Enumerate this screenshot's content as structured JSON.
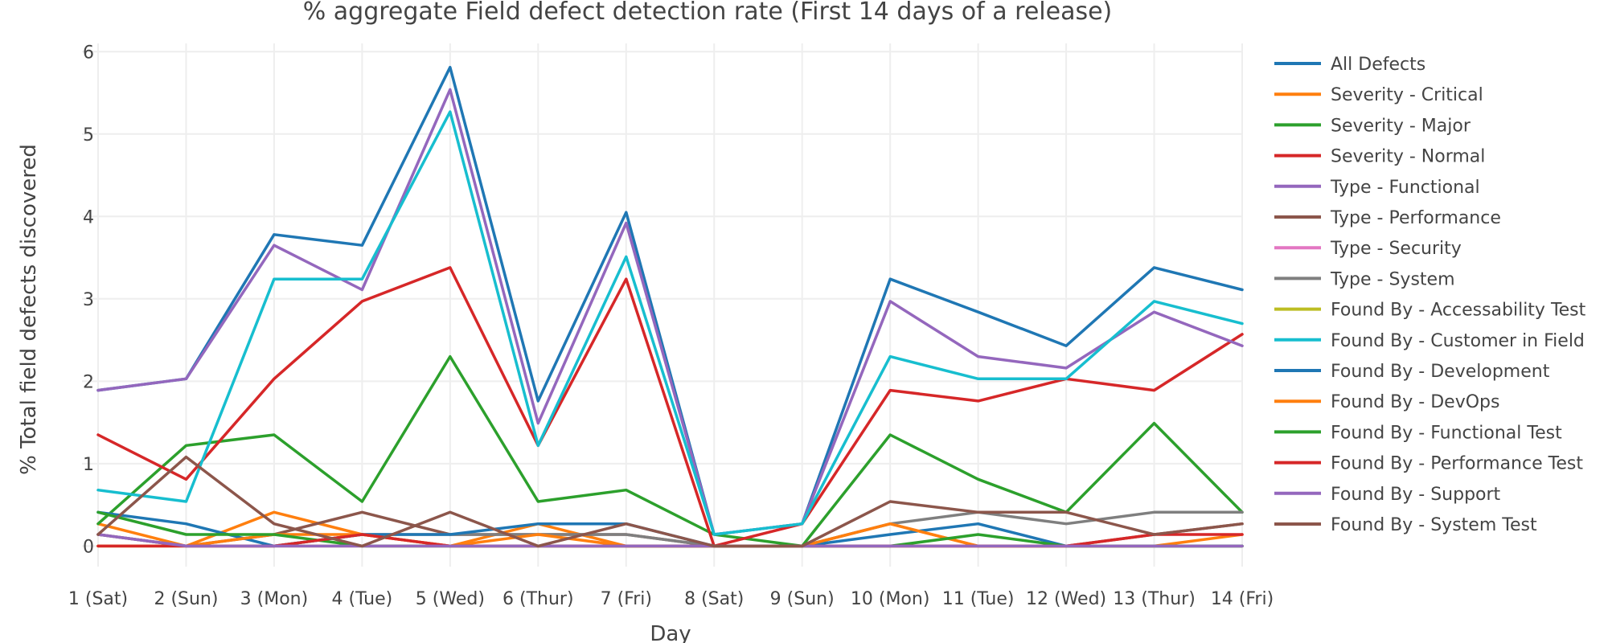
{
  "chart_data": {
    "type": "line",
    "title": "% aggregate Field defect detection rate (First 14 days of a release)",
    "xlabel": "Day",
    "ylabel": "% Total field defects discovered",
    "ylim": [
      -0.25,
      6.1
    ],
    "yticks": [
      0,
      1,
      2,
      3,
      4,
      5,
      6
    ],
    "grid": true,
    "legend_position": "right",
    "categories": [
      "1 (Sat)",
      "2 (Sun)",
      "3 (Mon)",
      "4 (Tue)",
      "5 (Wed)",
      "6 (Thur)",
      "7 (Fri)",
      "8 (Sat)",
      "9 (Sun)",
      "10 (Mon)",
      "11 (Tue)",
      "12 (Wed)",
      "13 (Thur)",
      "14 (Fri)"
    ],
    "series": [
      {
        "name": "All Defects",
        "color": "#1f77b4",
        "values": [
          1.89,
          2.03,
          3.78,
          3.65,
          5.81,
          1.76,
          4.05,
          0.14,
          0.27,
          3.24,
          2.84,
          2.43,
          3.38,
          3.11
        ]
      },
      {
        "name": "Severity - Critical",
        "color": "#ff7f0e",
        "values": [
          0.27,
          0.0,
          0.41,
          0.14,
          0.0,
          0.27,
          0.0,
          0.0,
          0.0,
          0.27,
          0.0,
          0.0,
          0.0,
          0.0
        ]
      },
      {
        "name": "Severity - Major",
        "color": "#2ca02c",
        "values": [
          0.27,
          1.22,
          1.35,
          0.54,
          2.3,
          0.54,
          0.68,
          0.14,
          0.0,
          1.35,
          0.81,
          0.41,
          1.49,
          0.41
        ]
      },
      {
        "name": "Severity - Normal",
        "color": "#d62728",
        "values": [
          1.35,
          0.81,
          2.03,
          2.97,
          3.38,
          1.22,
          3.24,
          0.0,
          0.27,
          1.89,
          1.76,
          2.03,
          1.89,
          2.57
        ]
      },
      {
        "name": "Type - Functional",
        "color": "#9467bd",
        "values": [
          1.89,
          2.03,
          3.65,
          3.11,
          5.54,
          1.49,
          3.92,
          0.14,
          0.27,
          2.97,
          2.3,
          2.16,
          2.84,
          2.43
        ]
      },
      {
        "name": "Type - Performance",
        "color": "#8c564b",
        "values": [
          0.14,
          0.0,
          0.14,
          0.41,
          0.14,
          0.14,
          0.14,
          0.0,
          0.0,
          0.0,
          0.0,
          0.0,
          0.14,
          0.27
        ]
      },
      {
        "name": "Type - Security",
        "color": "#e377c2",
        "values": [
          0.14,
          0.0,
          0.0,
          0.0,
          0.0,
          0.0,
          0.0,
          0.0,
          0.0,
          0.0,
          0.0,
          0.0,
          0.0,
          0.0
        ]
      },
      {
        "name": "Type - System",
        "color": "#7f7f7f",
        "values": [
          0.14,
          0.0,
          0.0,
          0.14,
          0.14,
          0.14,
          0.14,
          0.0,
          0.0,
          0.27,
          0.41,
          0.27,
          0.41,
          0.41
        ]
      },
      {
        "name": "Found By - Accessability Test",
        "color": "#bcbd22",
        "values": [
          0.0,
          0.0,
          0.0,
          0.0,
          0.0,
          0.0,
          0.0,
          0.0,
          0.0,
          0.0,
          0.0,
          0.0,
          0.0,
          0.0
        ]
      },
      {
        "name": "Found By - Customer in Field",
        "color": "#17becf",
        "values": [
          0.68,
          0.54,
          3.24,
          3.24,
          5.27,
          1.22,
          3.51,
          0.14,
          0.27,
          2.3,
          2.03,
          2.03,
          2.97,
          2.7
        ]
      },
      {
        "name": "Found By - Development",
        "color": "#1f77b4",
        "values": [
          0.41,
          0.27,
          0.0,
          0.14,
          0.14,
          0.27,
          0.27,
          0.0,
          0.0,
          0.14,
          0.27,
          0.0,
          0.0,
          0.0
        ]
      },
      {
        "name": "Found By - DevOps",
        "color": "#ff7f0e",
        "values": [
          0.0,
          0.0,
          0.14,
          0.14,
          0.0,
          0.14,
          0.0,
          0.0,
          0.0,
          0.27,
          0.0,
          0.0,
          0.0,
          0.14
        ]
      },
      {
        "name": "Found By - Functional Test",
        "color": "#2ca02c",
        "values": [
          0.41,
          0.14,
          0.14,
          0.0,
          0.0,
          0.0,
          0.0,
          0.0,
          0.0,
          0.0,
          0.14,
          0.0,
          0.0,
          0.0
        ]
      },
      {
        "name": "Found By - Performance Test",
        "color": "#d62728",
        "values": [
          0.0,
          0.0,
          0.0,
          0.14,
          0.0,
          0.0,
          0.0,
          0.0,
          0.0,
          0.0,
          0.0,
          0.0,
          0.14,
          0.14
        ]
      },
      {
        "name": "Found By - Support",
        "color": "#9467bd",
        "values": [
          0.14,
          0.0,
          0.0,
          0.0,
          0.0,
          0.0,
          0.0,
          0.0,
          0.0,
          0.0,
          0.0,
          0.0,
          0.0,
          0.0
        ]
      },
      {
        "name": "Found By - System Test",
        "color": "#8c564b",
        "values": [
          0.14,
          1.08,
          0.27,
          0.0,
          0.41,
          0.0,
          0.27,
          0.0,
          0.0,
          0.54,
          0.41,
          0.41,
          0.14,
          0.27
        ]
      }
    ]
  }
}
